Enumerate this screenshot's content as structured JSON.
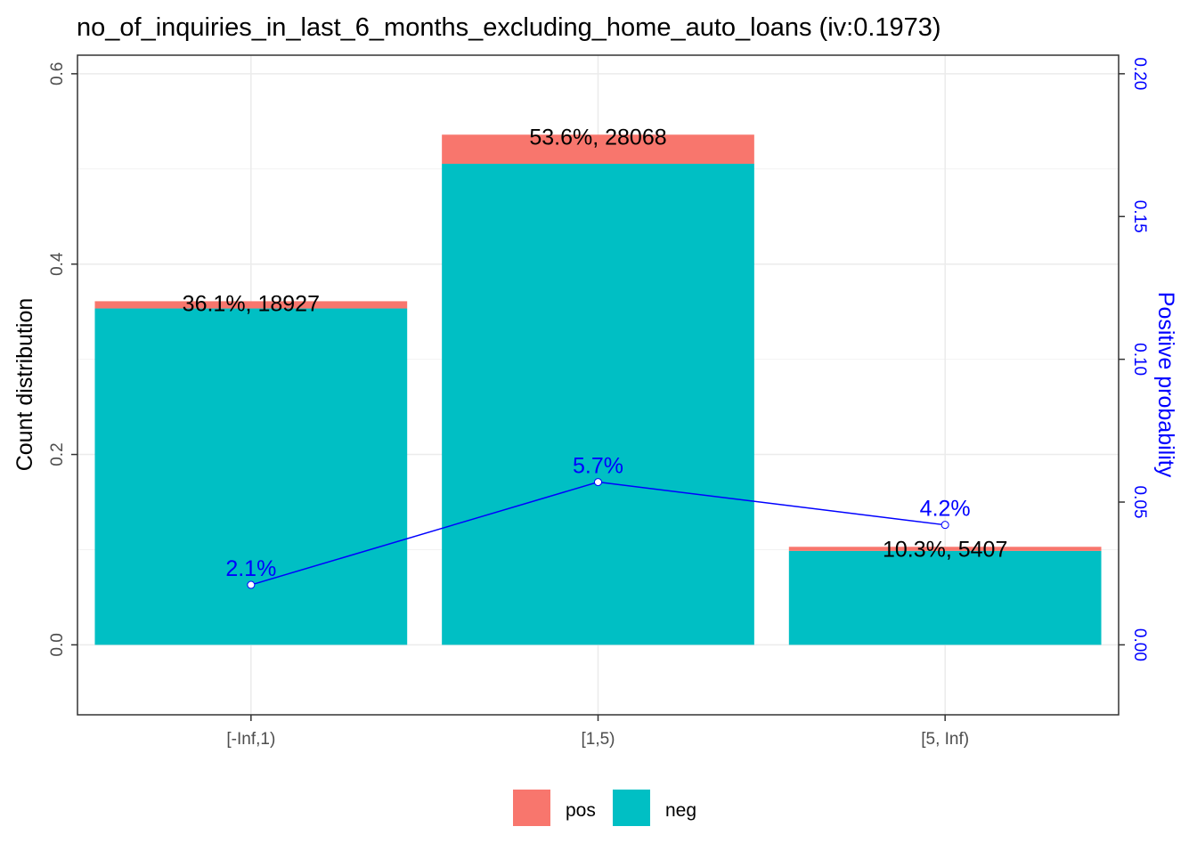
{
  "chart_data": {
    "type": "bar",
    "title": "no_of_inquiries_in_last_6_months_excluding_home_auto_loans  (iv:0.1973)",
    "ylabel": "Count distribution",
    "y2label": "Positive probability",
    "categories": [
      "[-Inf,1)",
      "[1,5)",
      "[5, Inf)"
    ],
    "stacked": true,
    "series": [
      {
        "name": "pos",
        "color": "#F8766D",
        "values": [
          0.0076,
          0.0306,
          0.0043
        ]
      },
      {
        "name": "neg",
        "color": "#00BFC4",
        "values": [
          0.3534,
          0.5054,
          0.0987
        ]
      }
    ],
    "totals": [
      0.361,
      0.536,
      0.103
    ],
    "bar_labels": [
      "36.1%, 18927",
      "53.6%, 28068",
      "10.3%, 5407"
    ],
    "line": {
      "name": "Positive probability",
      "color": "#0000FF",
      "values": [
        0.021,
        0.057,
        0.042
      ],
      "labels": [
        "2.1%",
        "5.7%",
        "4.2%"
      ]
    },
    "ylim": [
      -0.0735,
      0.6195
    ],
    "yticks": [
      0.0,
      0.2,
      0.4,
      0.6
    ],
    "ytick_labels": [
      "0.0",
      "0.2",
      "0.4",
      "0.6"
    ],
    "y2lim": [
      -0.0245,
      0.2065
    ],
    "y2ticks": [
      0.0,
      0.05,
      0.1,
      0.15,
      0.2
    ],
    "y2tick_labels": [
      "0.00",
      "0.05",
      "0.10",
      "0.15",
      "0.20"
    ],
    "grid": true,
    "legend": {
      "placement": "bottom",
      "items": [
        {
          "name": "pos",
          "color": "#F8766D"
        },
        {
          "name": "neg",
          "color": "#00BFC4"
        }
      ]
    }
  }
}
